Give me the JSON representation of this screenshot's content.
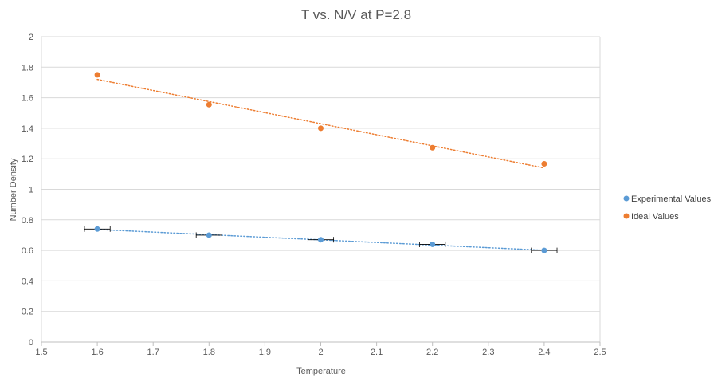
{
  "chart_data": {
    "type": "scatter",
    "title": "T vs. N/V at P=2.8",
    "xlabel": "Temperature",
    "ylabel": "Number Density",
    "xlim": [
      1.5,
      2.5
    ],
    "ylim": [
      0,
      2
    ],
    "x_ticks": [
      "1.5",
      "1.6",
      "1.7",
      "1.8",
      "1.9",
      "2",
      "2.1",
      "2.2",
      "2.3",
      "2.4",
      "2.5"
    ],
    "y_ticks": [
      "0",
      "0.2",
      "0.4",
      "0.6",
      "0.8",
      "1",
      "1.2",
      "1.4",
      "1.6",
      "1.8",
      "2"
    ],
    "grid": "horizontal",
    "legend_position": "right",
    "series": [
      {
        "name": "Experimental Values",
        "color": "#5B9BD5",
        "x": [
          1.6,
          1.8,
          2.0,
          2.2,
          2.4
        ],
        "y": [
          0.74,
          0.7,
          0.67,
          0.64,
          0.6
        ],
        "x_error": 0.023,
        "trendline": {
          "type": "linear",
          "y_start": 0.737,
          "y_end": 0.601,
          "style": "dotted"
        }
      },
      {
        "name": "Ideal Values",
        "color": "#ED7D31",
        "x": [
          1.6,
          1.8,
          2.0,
          2.2,
          2.4
        ],
        "y": [
          1.75,
          1.555,
          1.4,
          1.273,
          1.167
        ],
        "trendline": {
          "type": "linear",
          "y_start": 1.72,
          "y_end": 1.14,
          "style": "dotted"
        }
      }
    ]
  }
}
